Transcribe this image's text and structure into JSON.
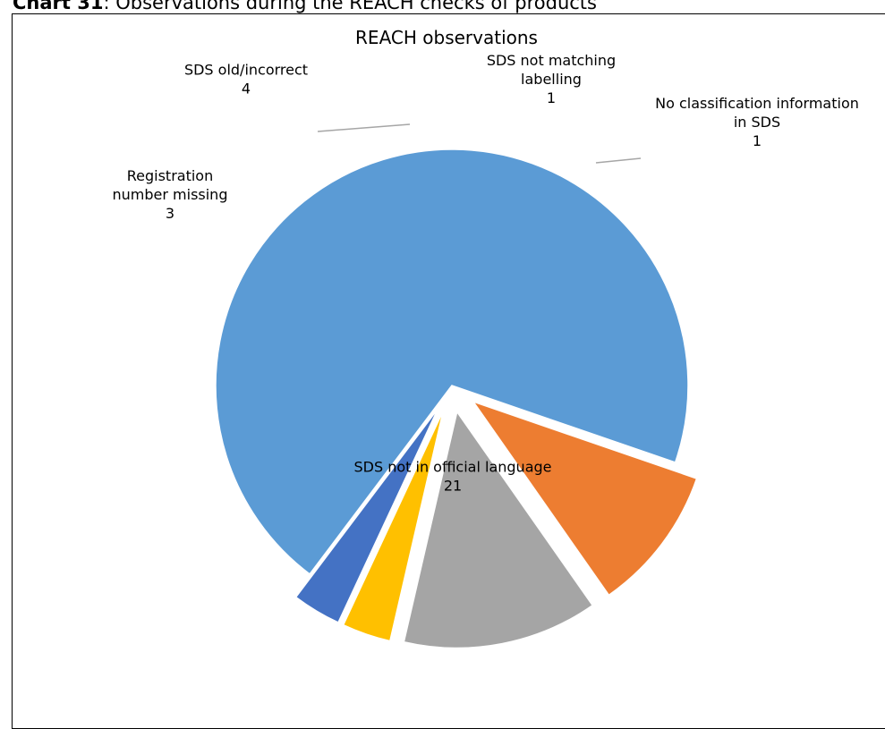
{
  "caption": {
    "prefix": "Chart 31",
    "text": ": Observations during the REACH checks of products"
  },
  "chart_data": {
    "type": "pie",
    "title": "REACH observations",
    "exploded": true,
    "slices": [
      {
        "label_lines": [
          "SDS not in official language"
        ],
        "value": 21,
        "color": "#5B9BD5"
      },
      {
        "label_lines": [
          "Registration",
          "number missing"
        ],
        "value": 3,
        "color": "#ED7D31"
      },
      {
        "label_lines": [
          "SDS old/incorrect"
        ],
        "value": 4,
        "color": "#A5A5A5"
      },
      {
        "label_lines": [
          "SDS not matching",
          "labelling"
        ],
        "value": 1,
        "color": "#FFC000"
      },
      {
        "label_lines": [
          "No classification information",
          "in SDS"
        ],
        "value": 1,
        "color": "#4472C4"
      }
    ]
  }
}
